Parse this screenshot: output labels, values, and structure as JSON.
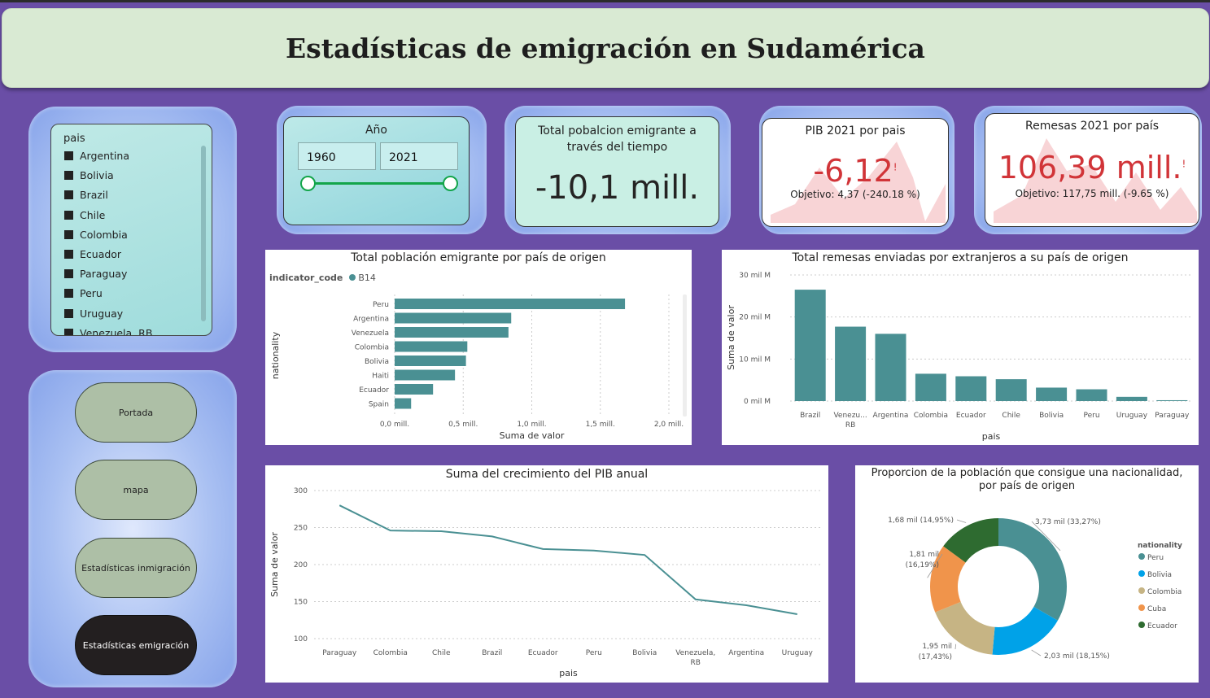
{
  "header": {
    "title": "Estadísticas de emigración en Sudamérica"
  },
  "slicer_pais": {
    "title": "pais",
    "items": [
      "Argentina",
      "Bolivia",
      "Brazil",
      "Chile",
      "Colombia",
      "Ecuador",
      "Paraguay",
      "Peru",
      "Uruguay",
      "Venezuela, RB"
    ]
  },
  "nav": {
    "portada": "Portada",
    "mapa": "mapa",
    "inmigracion": "Estadísticas inmigración",
    "emigracion": "Estadísticas emigración"
  },
  "year_slicer": {
    "title": "Año",
    "from": "1960",
    "to": "2021"
  },
  "kpi_total": {
    "title": "Total pobalcion emigrante a través del tiempo",
    "value": "-10,1 mill."
  },
  "kpi_pib": {
    "title": "PIB 2021 por pais",
    "value": "-6,12",
    "goal": "Objetivo: 4,37 (-240.18 %)",
    "mark": "!"
  },
  "kpi_remesas": {
    "title": "Remesas 2021 por país",
    "value": "106,39 mill.",
    "goal": "Objetivo: 117,75 mill. (-9.65 %)",
    "mark": "!"
  },
  "colors": {
    "teal": "#4a9093",
    "red": "#d13438",
    "blue": "#00a2e8",
    "tan": "#c6b484",
    "orange": "#f0944b",
    "green": "#2e6b30"
  },
  "chart_data": [
    {
      "type": "bar",
      "orientation": "horizontal",
      "title": "Total población emigrante por país de origen",
      "legend_title": "indicator_code",
      "series_name": "B14",
      "xlabel": "Suma de valor",
      "ylabel": "nationality",
      "categories": [
        "Peru",
        "Argentina",
        "Venezuela",
        "Colombia",
        "Bolivia",
        "Haiti",
        "Ecuador",
        "Spain"
      ],
      "values": [
        1.68,
        0.85,
        0.83,
        0.53,
        0.52,
        0.44,
        0.28,
        0.12
      ],
      "xlim": [
        0,
        2.0
      ],
      "xticks": [
        "0,0 mill.",
        "0,5 mill.",
        "1,0 mill.",
        "1,5 mill.",
        "2,0 mill."
      ]
    },
    {
      "type": "bar",
      "title": "Total remesas enviadas por extranjeros a su país de origen",
      "xlabel": "pais",
      "ylabel": "Suma de valor",
      "categories": [
        "Brazil",
        "Venezu... RB",
        "Argentina",
        "Colombia",
        "Ecuador",
        "Chile",
        "Bolivia",
        "Peru",
        "Uruguay",
        "Paraguay"
      ],
      "values": [
        26.5,
        17.7,
        16.0,
        6.5,
        5.9,
        5.2,
        3.2,
        2.8,
        1.0,
        0.2
      ],
      "ylim": [
        0,
        30
      ],
      "yticks": [
        "0 mil M",
        "10 mil M",
        "20 mil M",
        "30 mil M"
      ]
    },
    {
      "type": "line",
      "title": "Suma del crecimiento del PIB anual",
      "xlabel": "pais",
      "ylabel": "Suma de valor",
      "categories": [
        "Paraguay",
        "Colombia",
        "Chile",
        "Brazil",
        "Ecuador",
        "Peru",
        "Bolivia",
        "Venezuela, RB",
        "Argentina",
        "Uruguay"
      ],
      "values": [
        280,
        246,
        245,
        238,
        221,
        219,
        213,
        153,
        145,
        133
      ],
      "ylim": [
        100,
        300
      ],
      "yticks": [
        100,
        150,
        200,
        250,
        300
      ]
    },
    {
      "type": "pie",
      "title": "Proporcion de la población que consigue una nacionalidad, por país de origen",
      "legend_title": "nationality",
      "labels": [
        "Peru",
        "Bolivia",
        "Colombia",
        "Cuba",
        "Ecuador"
      ],
      "values": [
        33.27,
        18.15,
        17.43,
        16.19,
        14.95
      ],
      "data_labels": [
        "3,73 mil (33,27%)",
        "2,03 mil (18,15%)",
        "1,95 mil (17,43%)",
        "1,81 mil (16,19%)",
        "1,68 mil (14,95%)"
      ],
      "legend_position": "right"
    }
  ]
}
